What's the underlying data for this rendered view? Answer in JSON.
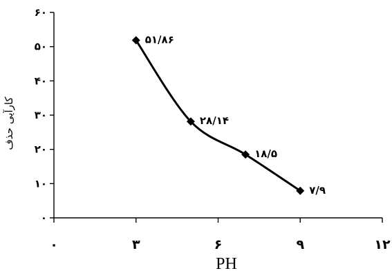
{
  "chart_data": {
    "type": "line",
    "xlabel": "PH",
    "ylabel": "کارآیی حذف",
    "xlim": [
      0,
      12
    ],
    "ylim": [
      0,
      60
    ],
    "x_ticks": [
      {
        "value": 0,
        "label": "۰"
      },
      {
        "value": 3,
        "label": "۳"
      },
      {
        "value": 6,
        "label": "۶"
      },
      {
        "value": 9,
        "label": "۹"
      },
      {
        "value": 12,
        "label": "۱۲"
      }
    ],
    "y_ticks": [
      {
        "value": 0,
        "label": "۰"
      },
      {
        "value": 10,
        "label": "۱۰"
      },
      {
        "value": 20,
        "label": "۲۰"
      },
      {
        "value": 30,
        "label": "۳۰"
      },
      {
        "value": 40,
        "label": "۴۰"
      },
      {
        "value": 50,
        "label": "۵۰"
      },
      {
        "value": 60,
        "label": "۶۰"
      }
    ],
    "grid": false,
    "series": [
      {
        "points": [
          {
            "x": 3,
            "y": 51.86,
            "label": "۵۱/۸۶"
          },
          {
            "x": 5,
            "y": 28.14,
            "label": "۲۸/۱۴"
          },
          {
            "x": 7,
            "y": 18.5,
            "label": "۱۸/۵"
          },
          {
            "x": 9,
            "y": 7.9,
            "label": "۷/۹"
          }
        ]
      }
    ]
  }
}
